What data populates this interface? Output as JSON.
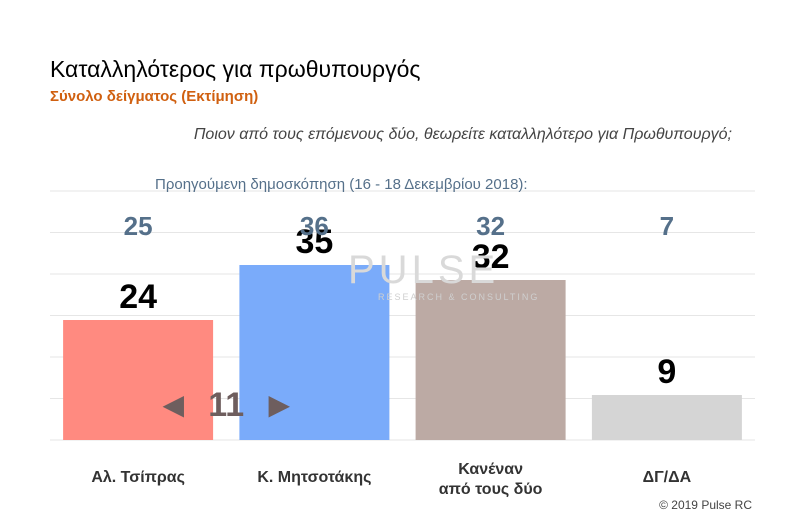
{
  "header": {
    "title": "Καταλληλότερος για πρωθυπουργός",
    "subtitle": "Σύνολο δείγματος   (Εκτίμηση)",
    "question": "Ποιον από τους επόμενους δύο, θεωρείτε καταλληλότερο για Πρωθυπουργό;",
    "previous_label": "Προηγούμενη δημοσκόπηση (16 - 18 Δεκεμβρίου 2018):",
    "copyright": "© 2019 Pulse RC"
  },
  "watermark": {
    "logo_text": "PULSE",
    "tagline": "RESEARCH & CONSULTING"
  },
  "chart_data": {
    "type": "bar",
    "categories": [
      "Αλ. Τσίπρας",
      "Κ. Μητσοτάκης",
      "Κανέναν από τους δύο",
      "ΔΓ/ΔΑ"
    ],
    "category_lines": [
      [
        "Αλ. Τσίπρας"
      ],
      [
        "Κ. Μητσοτάκης"
      ],
      [
        "Κανέναν",
        "από τους δύο"
      ],
      [
        "ΔΓ/ΔΑ"
      ]
    ],
    "values": [
      24,
      35,
      32,
      9
    ],
    "previous_values": [
      25,
      36,
      32,
      7
    ],
    "colors": [
      "#ff8a80",
      "#7aabfa",
      "#bcaaa4",
      "#d5d5d5"
    ],
    "annotation": {
      "arrow_left": "◀",
      "text": "11",
      "arrow_right": "▶"
    },
    "ylim": [
      0,
      55
    ],
    "grid": true,
    "legend": "none"
  }
}
